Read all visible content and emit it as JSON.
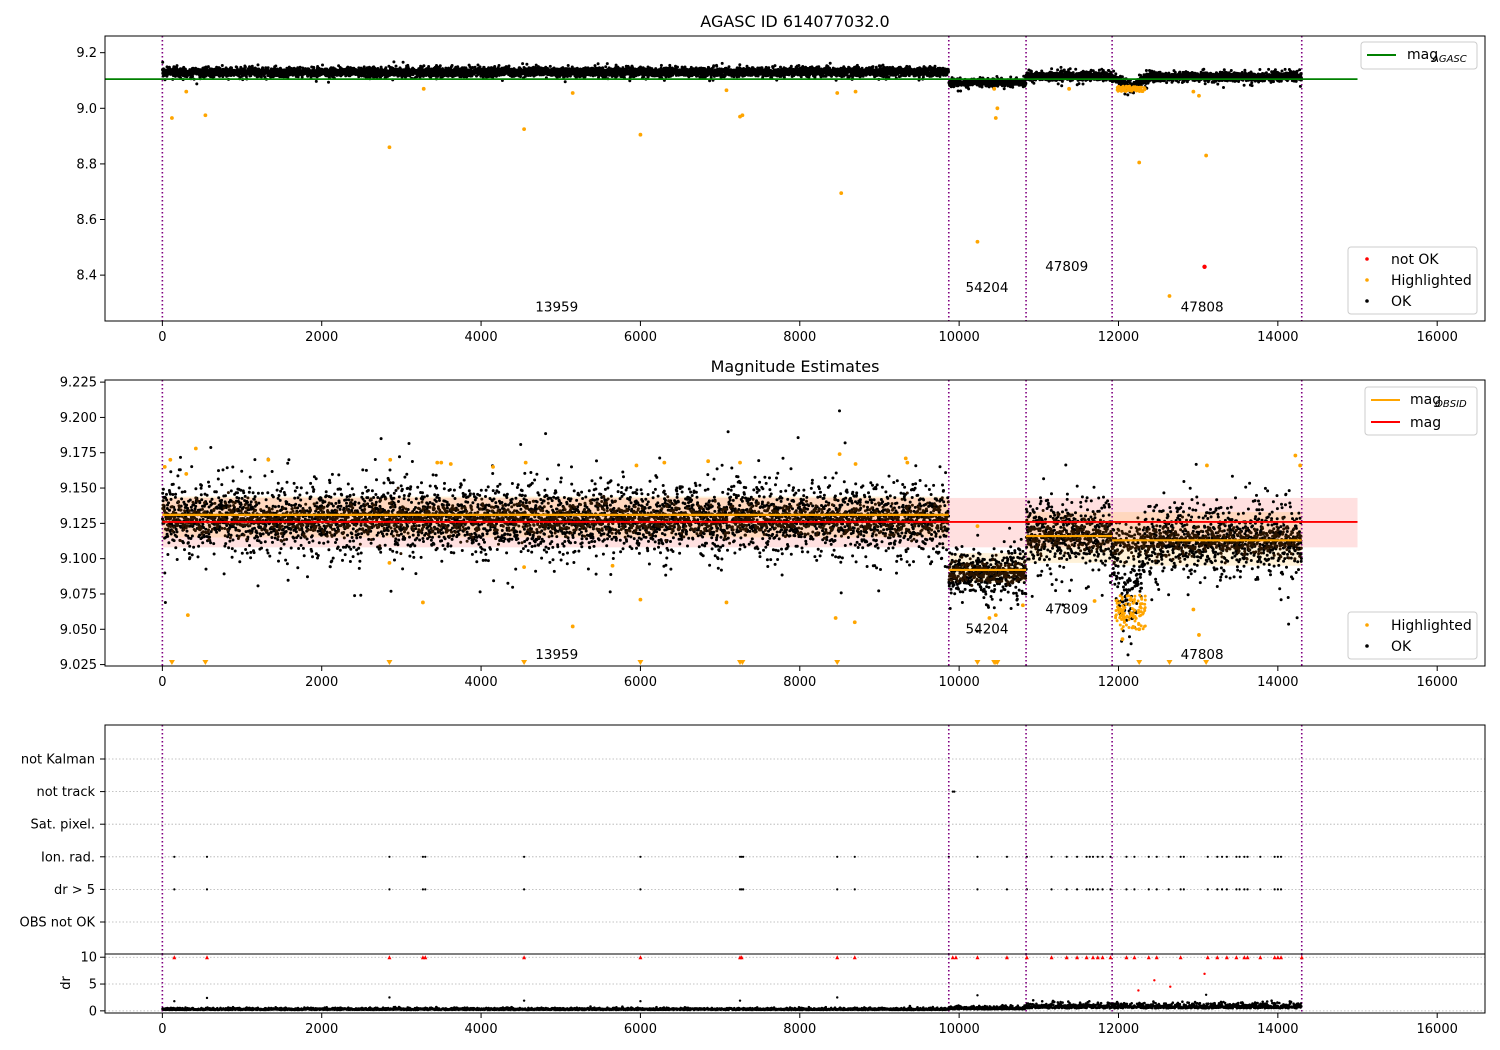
{
  "chart_data": [
    {
      "type": "scatter",
      "title": "AGASC ID 614077032.0",
      "xlim": [
        -720,
        16600
      ],
      "ylim": [
        8.235,
        9.26
      ],
      "x_ticks": [
        0,
        2000,
        4000,
        6000,
        8000,
        10000,
        12000,
        14000,
        16000
      ],
      "y_ticks": [
        8.4,
        8.6,
        8.8,
        9.0,
        9.2
      ],
      "y_tick_labels": [
        "8.4",
        "8.6",
        "8.8",
        "9.0",
        "9.2"
      ],
      "obs_boundaries": [
        0,
        9870,
        10840,
        11920,
        14300
      ],
      "obs_labels": [
        {
          "text": "13959",
          "x": 4950,
          "y": 8.27
        },
        {
          "text": "54204",
          "x": 10350,
          "y": 8.34
        },
        {
          "text": "47809",
          "x": 11350,
          "y": 8.415
        },
        {
          "text": "47808",
          "x": 13050,
          "y": 8.27
        }
      ],
      "reference_line": {
        "name": "mag",
        "subscript": "AGASC",
        "value": 9.105,
        "x": [
          -720,
          15000
        ],
        "color": "#008000"
      },
      "segments": [
        {
          "x": [
            0,
            9870
          ],
          "mean": 9.13,
          "spread": 0.014
        },
        {
          "x": [
            9870,
            10840
          ],
          "mean": 9.092,
          "spread": 0.01
        },
        {
          "x": [
            10840,
            11920
          ],
          "mean": 9.116,
          "spread": 0.014
        },
        {
          "x": [
            11920,
            14300
          ],
          "mean": 9.113,
          "spread": 0.014
        }
      ],
      "dip": {
        "center": 12150,
        "depth": 0.035
      },
      "highlighted_points": [
        [
          120,
          8.965
        ],
        [
          300,
          9.06
        ],
        [
          540,
          8.975
        ],
        [
          2850,
          8.86
        ],
        [
          3280,
          9.07
        ],
        [
          4540,
          8.925
        ],
        [
          5150,
          9.055
        ],
        [
          6000,
          8.905
        ],
        [
          7080,
          9.065
        ],
        [
          7250,
          8.97
        ],
        [
          7280,
          8.975
        ],
        [
          8470,
          9.055
        ],
        [
          8520,
          8.695
        ],
        [
          8700,
          9.06
        ],
        [
          10230,
          8.52
        ],
        [
          10440,
          9.07
        ],
        [
          10460,
          8.965
        ],
        [
          10480,
          9.0
        ],
        [
          11380,
          9.07
        ],
        [
          12260,
          8.805
        ],
        [
          12640,
          8.325
        ],
        [
          12940,
          9.06
        ],
        [
          13010,
          9.045
        ],
        [
          13100,
          8.83
        ]
      ],
      "not_ok_points": [
        [
          13080,
          8.43
        ]
      ],
      "legend_line": [
        {
          "label": "mag",
          "subscript": "AGASC",
          "color": "#008000"
        }
      ],
      "legend_points": [
        {
          "label": "not OK",
          "color": "#ff0000"
        },
        {
          "label": "Highlighted",
          "color": "#ffa500"
        },
        {
          "label": "OK",
          "color": "#000000"
        }
      ]
    },
    {
      "type": "scatter",
      "title": "Magnitude Estimates",
      "xlim": [
        -720,
        16600
      ],
      "ylim": [
        9.024,
        9.2265
      ],
      "x_ticks": [
        0,
        2000,
        4000,
        6000,
        8000,
        10000,
        12000,
        14000,
        16000
      ],
      "y_ticks": [
        9.025,
        9.05,
        9.075,
        9.1,
        9.125,
        9.15,
        9.175,
        9.2,
        9.225
      ],
      "y_tick_labels": [
        "9.025",
        "9.050",
        "9.075",
        "9.100",
        "9.125",
        "9.150",
        "9.175",
        "9.200",
        "9.225"
      ],
      "obs_boundaries": [
        0,
        9870,
        10840,
        11920,
        14300
      ],
      "obs_labels": [
        {
          "text": "13959",
          "x": 4950,
          "y": 9.029
        },
        {
          "text": "54204",
          "x": 10350,
          "y": 9.047
        },
        {
          "text": "47809",
          "x": 11350,
          "y": 9.061
        },
        {
          "text": "47808",
          "x": 13050,
          "y": 9.029
        }
      ],
      "global_mag": {
        "name": "mag",
        "value": 9.126,
        "band": [
          9.108,
          9.143
        ],
        "x": [
          0,
          15000
        ],
        "color": "#ff0000"
      },
      "obsid_mags": [
        {
          "x": [
            0,
            9870
          ],
          "value": 9.131,
          "band": [
            9.115,
            9.144
          ]
        },
        {
          "x": [
            9870,
            10840
          ],
          "value": 9.092,
          "band": [
            9.083,
            9.104
          ]
        },
        {
          "x": [
            10840,
            11920
          ],
          "value": 9.116,
          "band": [
            9.097,
            9.133
          ]
        },
        {
          "x": [
            11920,
            14300
          ],
          "value": 9.113,
          "band": [
            9.095,
            9.133
          ]
        }
      ],
      "segments": [
        {
          "x": [
            0,
            9870
          ],
          "mean": 9.128,
          "spread": 0.012
        },
        {
          "x": [
            9870,
            10840
          ],
          "mean": 9.09,
          "spread": 0.008
        },
        {
          "x": [
            10840,
            11920
          ],
          "mean": 9.117,
          "spread": 0.013
        },
        {
          "x": [
            11920,
            14300
          ],
          "mean": 9.113,
          "spread": 0.013
        }
      ],
      "dip": {
        "center": 12120,
        "depth": 0.045
      },
      "highlighted_points": [
        [
          30,
          9.165
        ],
        [
          100,
          9.17
        ],
        [
          300,
          9.16
        ],
        [
          320,
          9.06
        ],
        [
          420,
          9.178
        ],
        [
          1330,
          9.17
        ],
        [
          2850,
          9.097
        ],
        [
          2860,
          9.17
        ],
        [
          3270,
          9.069
        ],
        [
          3450,
          9.168
        ],
        [
          3500,
          9.168
        ],
        [
          3620,
          9.167
        ],
        [
          4150,
          9.165
        ],
        [
          4540,
          9.094
        ],
        [
          4560,
          9.168
        ],
        [
          5150,
          9.052
        ],
        [
          5650,
          9.095
        ],
        [
          5950,
          9.166
        ],
        [
          6000,
          9.071
        ],
        [
          6300,
          9.168
        ],
        [
          6850,
          9.169
        ],
        [
          7080,
          9.069
        ],
        [
          7250,
          9.168
        ],
        [
          8450,
          9.058
        ],
        [
          8500,
          9.174
        ],
        [
          8690,
          9.055
        ],
        [
          8700,
          9.167
        ],
        [
          9330,
          9.171
        ],
        [
          9350,
          9.168
        ],
        [
          10230,
          9.123
        ],
        [
          10380,
          9.058
        ],
        [
          10460,
          9.06
        ],
        [
          10800,
          9.067
        ],
        [
          11700,
          9.07
        ],
        [
          12050,
          9.043
        ],
        [
          12260,
          9.05
        ],
        [
          12940,
          9.064
        ],
        [
          13010,
          9.046
        ],
        [
          13110,
          9.166
        ],
        [
          14220,
          9.173
        ],
        [
          14280,
          9.166
        ]
      ],
      "below_range_markers": [
        120,
        540,
        2850,
        4540,
        6000,
        7250,
        7280,
        8470,
        10230,
        10440,
        10460,
        10480,
        12260,
        12640,
        13100
      ],
      "legend_line": [
        {
          "label": "mag",
          "subscript": "OBSID",
          "color": "#ffa500"
        },
        {
          "label": "mag",
          "color": "#ff0000"
        }
      ],
      "legend_points": [
        {
          "label": "Highlighted",
          "color": "#ffa500"
        },
        {
          "label": "OK",
          "color": "#000000"
        }
      ]
    },
    {
      "type": "scatter",
      "xlim": [
        -720,
        16600
      ],
      "x_ticks": [
        0,
        2000,
        4000,
        6000,
        8000,
        10000,
        12000,
        14000,
        16000
      ],
      "flag_rows": [
        "not Kalman",
        "not track",
        "Sat. pixel.",
        "Ion. rad.",
        "dr > 5",
        "OBS not OK"
      ],
      "obs_boundaries": [
        0,
        9870,
        10840,
        11920,
        14300
      ],
      "flag_points": {
        "not track": [
          9920,
          9940
        ],
        "Ion. rad.": [
          150,
          560,
          2850,
          3270,
          3300,
          4540,
          6000,
          7250,
          7270,
          7290,
          8470,
          8690,
          9870,
          10230,
          10600,
          10850,
          11160,
          11350,
          11480,
          11600,
          11640,
          11680,
          11740,
          11800,
          11900,
          12100,
          12200,
          12380,
          12480,
          12630,
          12780,
          12820,
          13120,
          13240,
          13300,
          13360,
          13480,
          13520,
          13580,
          13620,
          13780,
          13960,
          14000,
          14040
        ],
        "dr > 5": [
          150,
          560,
          2850,
          3270,
          3300,
          4540,
          6000,
          7250,
          7270,
          7290,
          8470,
          8690,
          9870,
          10230,
          10600,
          10850,
          11160,
          11350,
          11480,
          11600,
          11640,
          11680,
          11740,
          11800,
          11900,
          12100,
          12200,
          12380,
          12480,
          12630,
          12780,
          12820,
          13120,
          13240,
          13300,
          13360,
          13480,
          13520,
          13580,
          13620,
          13780,
          13960,
          14000,
          14040
        ]
      }
    },
    {
      "type": "scatter",
      "ylabel": "dr",
      "xlim": [
        -720,
        16600
      ],
      "ylim": [
        -0.4,
        10.6
      ],
      "x_ticks": [
        0,
        2000,
        4000,
        6000,
        8000,
        10000,
        12000,
        14000,
        16000
      ],
      "y_ticks": [
        0,
        5,
        10
      ],
      "y_tick_labels": [
        "0",
        "5",
        "10"
      ],
      "obs_boundaries": [
        0,
        9870,
        10840,
        11920,
        14300
      ],
      "clipped_points": [
        150,
        560,
        2850,
        3270,
        3300,
        4540,
        6000,
        7250,
        7270,
        8470,
        8690,
        9920,
        9960,
        10230,
        10600,
        10850,
        11160,
        11350,
        11480,
        11600,
        11680,
        11740,
        11800,
        11900,
        12100,
        12200,
        12380,
        12480,
        12780,
        13120,
        13240,
        13360,
        13480,
        13580,
        13620,
        13780,
        13960,
        14000,
        14040,
        14300
      ],
      "outlier_points": [
        [
          150,
          1.8
        ],
        [
          560,
          2.4
        ],
        [
          2850,
          2.5
        ],
        [
          4540,
          1.9
        ],
        [
          6000,
          1.8
        ],
        [
          7250,
          1.9
        ],
        [
          8470,
          2.5
        ],
        [
          10230,
          2.9
        ],
        [
          12250,
          3.8
        ],
        [
          12450,
          5.7
        ],
        [
          12650,
          4.5
        ],
        [
          13080,
          6.9
        ],
        [
          13100,
          3.0
        ]
      ],
      "baseline": [
        {
          "x": [
            0,
            9870
          ],
          "mean": 0.3
        },
        {
          "x": [
            9870,
            10840
          ],
          "mean": 0.5
        },
        {
          "x": [
            10840,
            14300
          ],
          "mean": 0.8
        }
      ]
    }
  ]
}
